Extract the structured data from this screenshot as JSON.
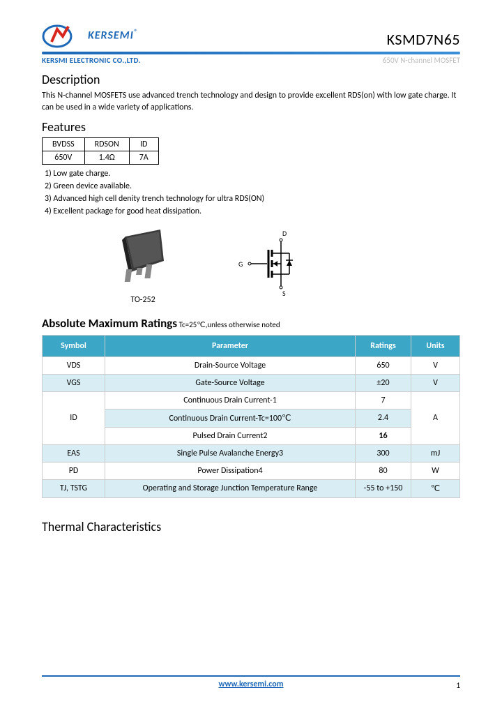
{
  "header": {
    "brand": "KERSEMI",
    "registered": "®",
    "part_number": "KSMD7N65",
    "company": "KERSMI ELECTRONIC CO.,LTD.",
    "subtitle": "650V  N-channel MOSFET",
    "logo_colors": {
      "blue": "#1d68b7",
      "red": "#d7261e"
    }
  },
  "description": {
    "heading": "Description",
    "text": "This N-channel MOSFETS use advanced trench technology and design to provide excellent RDS(on) with low gate charge. It can be used in a wide variety of applications."
  },
  "features": {
    "heading": "Features",
    "mini_table": {
      "headers": [
        "BVDSS",
        "RDSON",
        "ID"
      ],
      "values": [
        "650V",
        "1.4Ω",
        "7A"
      ]
    },
    "list": [
      "1)    Low gate charge.",
      "2)    Green device available.",
      "3)    Advanced high cell denity trench technology for ultra RDS(ON)",
      "4)    Excellent package for good heat dissipation."
    ]
  },
  "package": {
    "label": "TO-252",
    "pins": {
      "d": "D",
      "g": "G",
      "s": "S"
    }
  },
  "ratings": {
    "heading": "Absolute Maximum Ratings",
    "note": " Tc=25℃,unless otherwise noted",
    "columns": [
      "Symbol",
      "Parameter",
      "Ratings",
      "Units"
    ],
    "rows": [
      {
        "alt": false,
        "cells": [
          "VDS",
          "Drain-Source Voltage",
          "650",
          "V"
        ],
        "rowspan_sym": 1,
        "rowspan_unit": 1
      },
      {
        "alt": true,
        "cells": [
          "VGS",
          "Gate-Source Voltage",
          "±20",
          "V"
        ],
        "rowspan_sym": 1,
        "rowspan_unit": 1
      },
      {
        "alt": false,
        "cells": [
          "ID",
          "Continuous Drain Current-1",
          "7",
          "A"
        ],
        "rowspan_sym": 3,
        "rowspan_unit": 3
      },
      {
        "alt": true,
        "cells": [
          null,
          "Continuous Drain Current-Tc=100℃",
          "2.4",
          null
        ]
      },
      {
        "alt": false,
        "cells": [
          null,
          "Pulsed Drain Current2",
          "16",
          null
        ],
        "bold_rating": true
      },
      {
        "alt": true,
        "cells": [
          "EAS",
          "Single Pulse Avalanche Energy3",
          "300",
          "mJ"
        ],
        "rowspan_sym": 1,
        "rowspan_unit": 1
      },
      {
        "alt": false,
        "cells": [
          "PD",
          "Power Dissipation4",
          "80",
          "W"
        ],
        "rowspan_sym": 1,
        "rowspan_unit": 1
      },
      {
        "alt": true,
        "cells": [
          "TJ, TSTG",
          "Operating and Storage Junction Temperature Range",
          "-55 to +150",
          "℃"
        ],
        "rowspan_sym": 1,
        "rowspan_unit": 1
      }
    ]
  },
  "thermal": {
    "heading": "Thermal Characteristics"
  },
  "footer": {
    "url": "www.kersemi.com",
    "page": "1"
  },
  "colors": {
    "accent": "#1d68b7",
    "table_header": "#3ba6c6",
    "table_alt": "#d9eef4",
    "border": "#cccccc"
  }
}
